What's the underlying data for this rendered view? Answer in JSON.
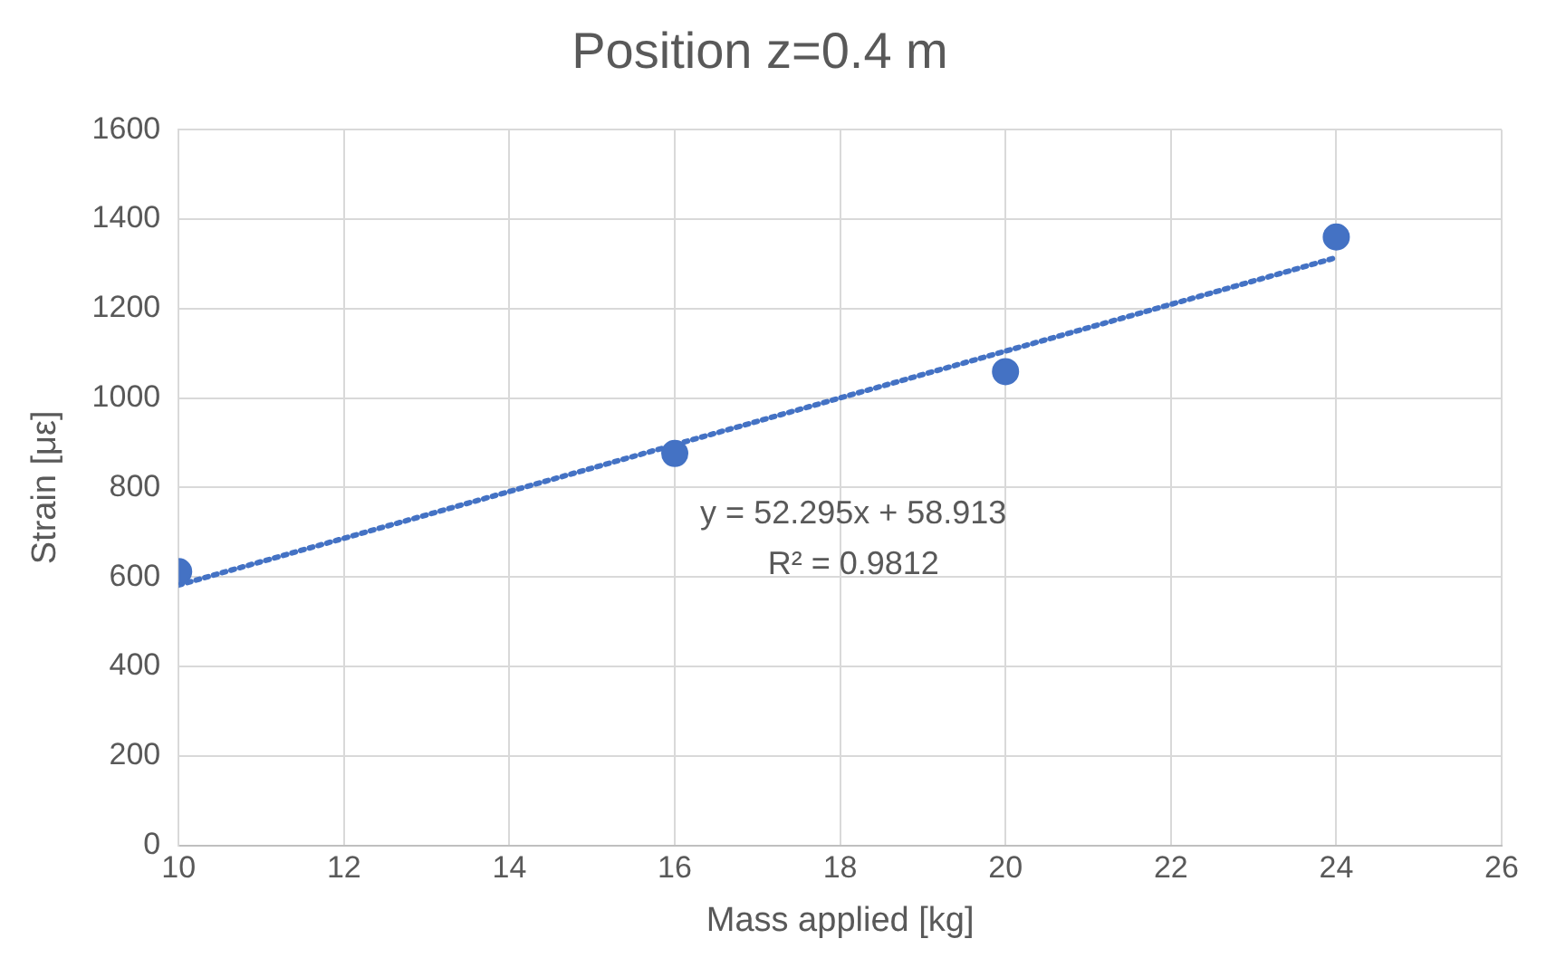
{
  "chart_data": {
    "type": "scatter",
    "title": "Position z=0.4 m",
    "xlabel": "Mass applied [kg]",
    "ylabel": "Strain [με]",
    "xlim": [
      10,
      26
    ],
    "xticks": [
      10,
      12,
      14,
      16,
      18,
      20,
      22,
      24,
      26
    ],
    "ylim": [
      0,
      1600
    ],
    "yticks": [
      0,
      200,
      400,
      600,
      800,
      1000,
      1200,
      1400,
      1600
    ],
    "grid": true,
    "legend": false,
    "marker": "circle",
    "series": [
      {
        "color": "#4472c4",
        "x": [
          10,
          16,
          20,
          24
        ],
        "values": [
          612,
          876,
          1059,
          1360
        ]
      },
      {
        "type": "line",
        "color": "#4472c4",
        "line_style": "dotted",
        "marker": "none",
        "x": [
          10,
          24
        ],
        "values": [
          582,
          1314
        ]
      }
    ],
    "annotations": [
      "y = 52.295x + 58.913",
      "R² = 0.9812"
    ]
  }
}
